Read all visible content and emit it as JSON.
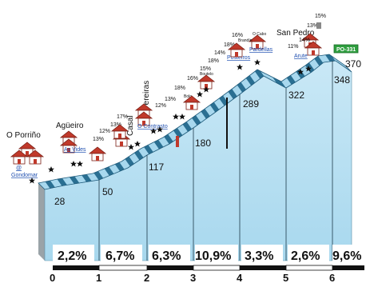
{
  "profile": {
    "elevation_markers": [
      {
        "km": 0,
        "elevation": "28"
      },
      {
        "km": 1,
        "elevation": "50"
      },
      {
        "km": 2,
        "elevation": "117"
      },
      {
        "km": 3,
        "elevation": "180"
      },
      {
        "km": 4,
        "elevation": "289"
      },
      {
        "km": 5,
        "elevation": "322"
      },
      {
        "km": 6,
        "elevation": "348"
      },
      {
        "km": 6.2,
        "elevation": "370"
      }
    ],
    "segment_grades": [
      "2,2%",
      "6,7%",
      "6,3%",
      "10,9%",
      "3,3%",
      "2,6%",
      "9,6%"
    ],
    "km_labels": [
      "0",
      "1",
      "2",
      "3",
      "4",
      "5",
      "6"
    ],
    "places": {
      "porrino": "O Porriño",
      "agueiro": "Agüeiro",
      "gondomar": "Gondomar",
      "gondomar_marker": "@",
      "as_vides": "As Vides",
      "pereiras": "Pereiras",
      "casal": "Casal",
      "o_contrasto": "O Contrasto",
      "bolo": "Bolo",
      "boutelo": "Boutelo",
      "posteiros": "Posteiros",
      "o_cabo": "O Cabo",
      "brandin": "Brandín",
      "pardellas": "Pardellas",
      "san_pedro": "San Pedro",
      "arute": "Arute"
    },
    "ramp_labels": [
      "13%",
      "12%",
      "13%",
      "17%",
      "12%",
      "13%",
      "18%",
      "16%",
      "15%",
      "18%",
      "14%",
      "18%",
      "16%",
      "11%",
      "14%",
      "13%",
      "15%"
    ],
    "road_sign": "PO-331",
    "colors": {
      "slope_light": "#a8d8ee",
      "slope_dark": "#1e5a7a",
      "slope_face": "#c9e8f6",
      "village_red": "#c0392b",
      "link_blue": "#1f4fb0",
      "sign_green": "#2e9e3e"
    }
  }
}
